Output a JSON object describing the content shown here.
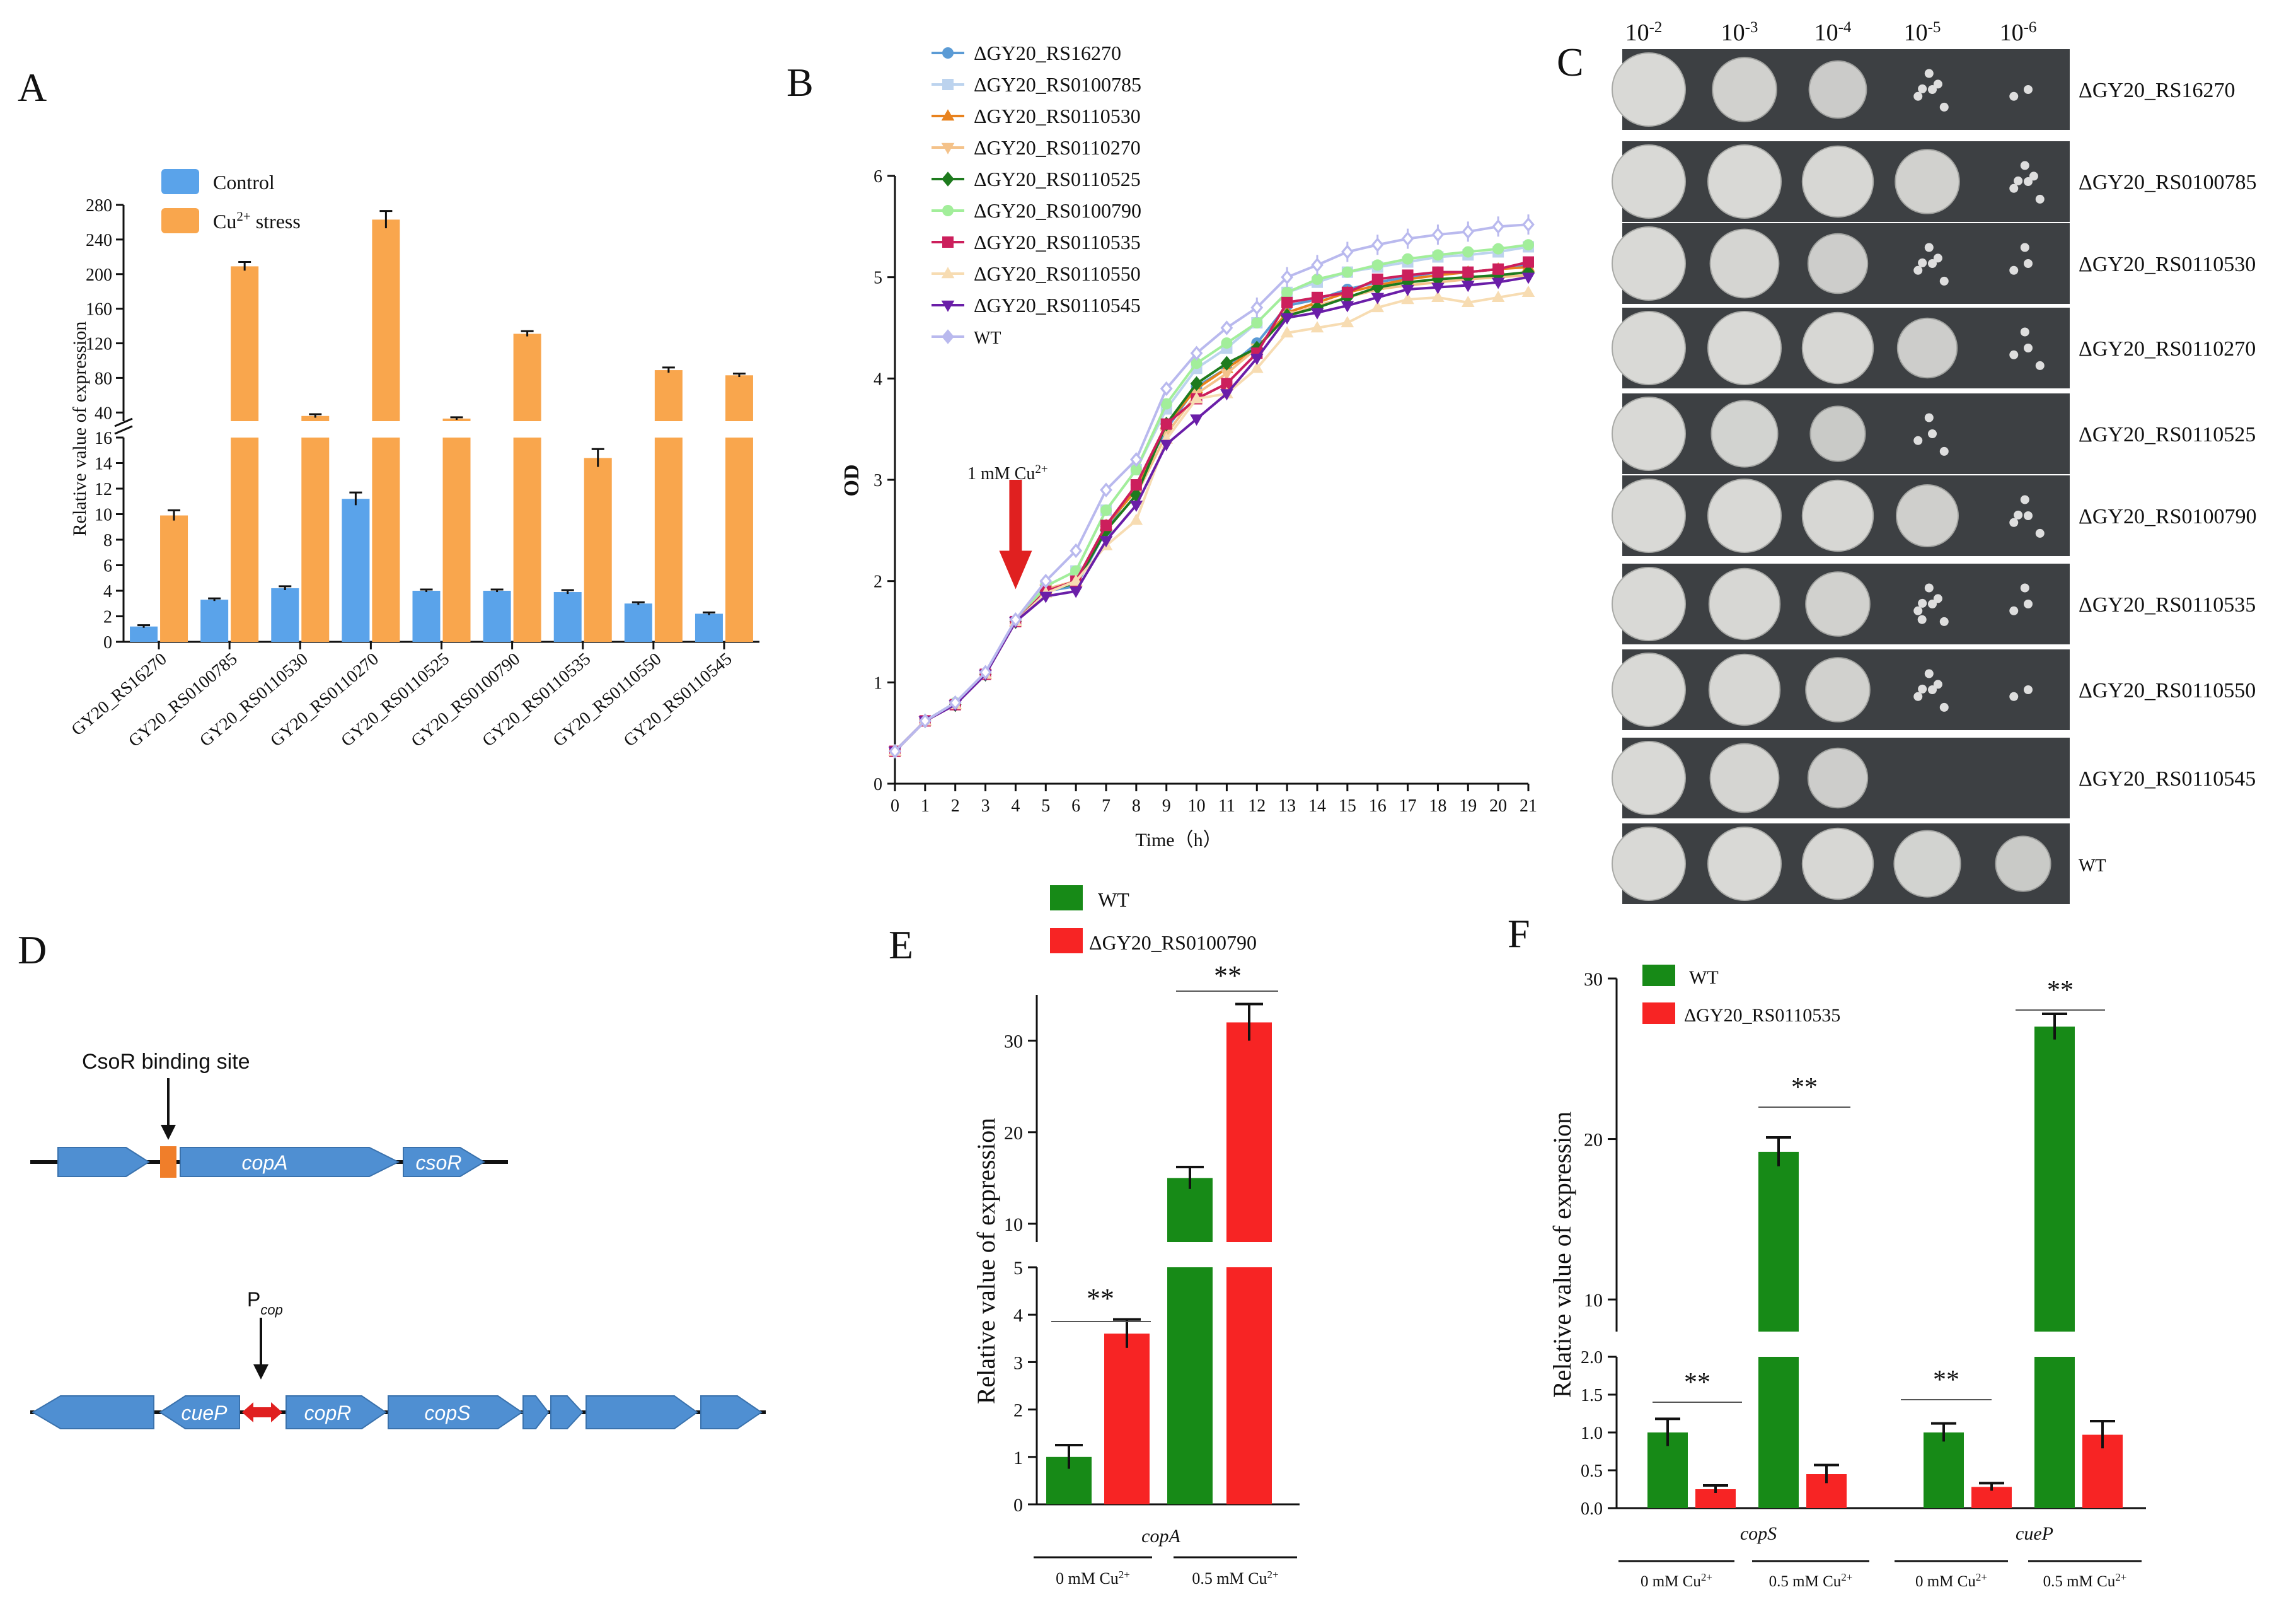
{
  "figure": {
    "panel_letters": [
      "A",
      "B",
      "C",
      "D",
      "E",
      "F"
    ]
  },
  "colors": {
    "control": "#5aa3ea",
    "cu_stress": "#f9a64d",
    "wt_green": "#178a17",
    "mutant_red": "#f72424",
    "gene_blue": "#4f8fd2",
    "csor_orange": "#f07e2a",
    "arrow_red": "#e02020"
  },
  "chart_data": [
    {
      "panel": "A",
      "type": "bar",
      "ylabel": "Relative value of expression",
      "ylim_lower": [
        0,
        16
      ],
      "ylim_upper": [
        30,
        280
      ],
      "yticks_lower": [
        "0",
        "2",
        "4",
        "6",
        "8",
        "10",
        "12",
        "14",
        "16"
      ],
      "yticks_upper": [
        "40",
        "80",
        "120",
        "160",
        "200",
        "240",
        "280"
      ],
      "categories": [
        "GY20_RS16270",
        "GY20_RS0100785",
        "GY20_RS0110530",
        "GY20_RS0110270",
        "GY20_RS0110525",
        "GY20_RS0100790",
        "GY20_RS0110535",
        "GY20_RS0110550",
        "GY20_RS0110545"
      ],
      "series": [
        {
          "name": "Control",
          "values": [
            1.2,
            3.3,
            4.2,
            11.2,
            4.0,
            4.0,
            3.9,
            3.0,
            2.2
          ],
          "errors": [
            0.1,
            0.1,
            0.15,
            0.5,
            0.1,
            0.1,
            0.15,
            0.1,
            0.1
          ]
        },
        {
          "name": "Cu2+ stress",
          "values": [
            9.9,
            209,
            36,
            263,
            33,
            131,
            14.4,
            89,
            83
          ],
          "errors": [
            0.4,
            5,
            2,
            10,
            1.5,
            3,
            0.7,
            3,
            2
          ]
        }
      ],
      "legend": [
        {
          "label": "Control"
        },
        {
          "label": "Cu",
          "sup": "2+",
          "rest": " stress"
        }
      ]
    },
    {
      "panel": "B",
      "type": "line",
      "ylabel": "OD",
      "xlabel": "Time（h）",
      "xlim": [
        0,
        21
      ],
      "ylim": [
        0,
        6
      ],
      "x": [
        0,
        1,
        2,
        3,
        4,
        5,
        6,
        7,
        8,
        9,
        10,
        11,
        12,
        13,
        14,
        15,
        16,
        17,
        18,
        19,
        20,
        21
      ],
      "xticks": [
        "0",
        "1",
        "2",
        "3",
        "4",
        "5",
        "6",
        "7",
        "8",
        "9",
        "10",
        "11",
        "12",
        "13",
        "14",
        "15",
        "16",
        "17",
        "18",
        "19",
        "20",
        "21"
      ],
      "yticks": [
        "0",
        "1",
        "2",
        "3",
        "4",
        "5",
        "6"
      ],
      "annotation": {
        "text": "1 mM Cu",
        "sup": "2+",
        "x": 4
      },
      "series": [
        {
          "name": "ΔGY20_RS16270",
          "marker": "circle",
          "color": "#5b9bd5",
          "values": [
            0.32,
            0.62,
            0.78,
            1.08,
            1.6,
            1.9,
            1.95,
            2.5,
            2.95,
            3.5,
            3.92,
            4.1,
            4.35,
            4.72,
            4.78,
            4.88,
            4.95,
            5.0,
            5.05,
            5.05,
            5.08,
            5.12
          ]
        },
        {
          "name": "ΔGY20_RS0100785",
          "marker": "square",
          "color": "#bcd3ee",
          "values": [
            0.32,
            0.62,
            0.78,
            1.08,
            1.6,
            1.95,
            2.1,
            2.7,
            3.1,
            3.7,
            4.1,
            4.3,
            4.55,
            4.85,
            4.95,
            5.05,
            5.1,
            5.15,
            5.2,
            5.22,
            5.25,
            5.3
          ]
        },
        {
          "name": "ΔGY20_RS0110530",
          "marker": "triangle",
          "color": "#e8821e",
          "values": [
            0.32,
            0.62,
            0.78,
            1.08,
            1.6,
            1.92,
            2.0,
            2.55,
            2.9,
            3.55,
            3.9,
            4.1,
            4.3,
            4.65,
            4.75,
            4.85,
            4.92,
            4.98,
            5.02,
            5.05,
            5.08,
            5.1
          ]
        },
        {
          "name": "ΔGY20_RS0110270",
          "marker": "triangle-down",
          "color": "#f4c28a",
          "values": [
            0.32,
            0.62,
            0.78,
            1.08,
            1.6,
            1.92,
            2.0,
            2.5,
            2.85,
            3.45,
            3.85,
            4.05,
            4.3,
            4.62,
            4.72,
            4.8,
            4.88,
            4.92,
            4.95,
            4.98,
            5.0,
            5.02
          ]
        },
        {
          "name": "ΔGY20_RS0110525",
          "marker": "diamond",
          "color": "#1e7b1e",
          "values": [
            0.32,
            0.62,
            0.78,
            1.08,
            1.6,
            1.9,
            1.98,
            2.5,
            2.85,
            3.55,
            3.95,
            4.15,
            4.3,
            4.62,
            4.7,
            4.8,
            4.9,
            4.95,
            4.98,
            5.0,
            5.02,
            5.05
          ]
        },
        {
          "name": "ΔGY20_RS0100790",
          "marker": "circle",
          "color": "#a2ee9a",
          "values": [
            0.32,
            0.62,
            0.8,
            1.08,
            1.6,
            1.95,
            2.1,
            2.7,
            3.1,
            3.75,
            4.15,
            4.35,
            4.55,
            4.85,
            4.98,
            5.05,
            5.12,
            5.18,
            5.22,
            5.25,
            5.28,
            5.32
          ]
        },
        {
          "name": "ΔGY20_RS0110535",
          "marker": "square",
          "color": "#cc1f5c",
          "values": [
            0.32,
            0.62,
            0.78,
            1.08,
            1.6,
            1.9,
            2.0,
            2.55,
            2.95,
            3.55,
            3.8,
            3.95,
            4.25,
            4.75,
            4.8,
            4.85,
            4.98,
            5.02,
            5.05,
            5.05,
            5.08,
            5.15
          ]
        },
        {
          "name": "ΔGY20_RS0110550",
          "marker": "triangle",
          "color": "#f7dcb2",
          "values": [
            0.32,
            0.62,
            0.78,
            1.08,
            1.6,
            1.88,
            2.0,
            2.35,
            2.6,
            3.4,
            3.8,
            3.85,
            4.1,
            4.45,
            4.5,
            4.55,
            4.7,
            4.78,
            4.8,
            4.75,
            4.8,
            4.85
          ]
        },
        {
          "name": "ΔGY20_RS0110545",
          "marker": "triangle-down",
          "color": "#6a1ea8",
          "values": [
            0.32,
            0.62,
            0.78,
            1.08,
            1.6,
            1.85,
            1.9,
            2.4,
            2.75,
            3.35,
            3.6,
            3.85,
            4.2,
            4.6,
            4.65,
            4.72,
            4.8,
            4.88,
            4.9,
            4.92,
            4.95,
            5.0
          ]
        },
        {
          "name": "WT",
          "marker": "diamond",
          "color": "#b9b9ee",
          "values": [
            0.32,
            0.62,
            0.8,
            1.1,
            1.62,
            2.0,
            2.3,
            2.9,
            3.2,
            3.9,
            4.25,
            4.5,
            4.7,
            5.0,
            5.12,
            5.25,
            5.32,
            5.38,
            5.42,
            5.45,
            5.5,
            5.52
          ]
        }
      ]
    },
    {
      "panel": "E",
      "type": "bar",
      "ylabel": "Relative value of expression",
      "ylim_lower": [
        0,
        5
      ],
      "ylim_upper": [
        8,
        35
      ],
      "yticks_lower": [
        "0",
        "1",
        "2",
        "3",
        "4",
        "5"
      ],
      "yticks_upper": [
        "10",
        "20",
        "30"
      ],
      "gene": "copA",
      "groups": [
        {
          "label": "0 mM Cu",
          "sup": "2+"
        },
        {
          "label": "0.5 mM Cu",
          "sup": "2+"
        }
      ],
      "series": [
        {
          "name": "WT",
          "values": [
            1.0,
            15.0
          ],
          "errors": [
            0.25,
            1.2
          ]
        },
        {
          "name": "ΔGY20_RS0100790",
          "values": [
            3.6,
            32.0
          ],
          "errors": [
            0.3,
            2.0
          ]
        }
      ],
      "significance": [
        "**",
        "**"
      ]
    },
    {
      "panel": "F",
      "type": "bar",
      "ylabel": "Relative value of expression",
      "ylim_lower": [
        0,
        2.0
      ],
      "ylim_upper": [
        8,
        30
      ],
      "yticks_lower": [
        "0.0",
        "0.5",
        "1.0",
        "1.5",
        "2.0"
      ],
      "yticks_upper": [
        "10",
        "20",
        "30"
      ],
      "genes": [
        "copS",
        "cueP"
      ],
      "groups": [
        {
          "label": "0 mM Cu",
          "sup": "2+"
        },
        {
          "label": "0.5 mM Cu",
          "sup": "2+"
        },
        {
          "label": "0 mM Cu",
          "sup": "2+"
        },
        {
          "label": "0.5 mM Cu",
          "sup": "2+"
        }
      ],
      "series": [
        {
          "name": "WT",
          "values": [
            1.0,
            19.2,
            1.0,
            27.0
          ],
          "errors": [
            0.18,
            0.9,
            0.12,
            0.8
          ]
        },
        {
          "name": "ΔGY20_RS0110535",
          "values": [
            0.25,
            0.45,
            0.28,
            0.97
          ],
          "errors": [
            0.05,
            0.12,
            0.05,
            0.18
          ]
        }
      ],
      "significance": [
        "**",
        "**",
        "**",
        "**"
      ]
    }
  ],
  "panel_c": {
    "dilutions": [
      {
        "base": "10",
        "exp": "-2"
      },
      {
        "base": "10",
        "exp": "-3"
      },
      {
        "base": "10",
        "exp": "-4"
      },
      {
        "base": "10",
        "exp": "-5"
      },
      {
        "base": "10",
        "exp": "-6"
      }
    ],
    "strains": [
      "ΔGY20_RS16270",
      "ΔGY20_RS0100785",
      "ΔGY20_RS0110530",
      "ΔGY20_RS0110270",
      "ΔGY20_RS0110525",
      "ΔGY20_RS0100790",
      "ΔGY20_RS0110535",
      "ΔGY20_RS0110550",
      "ΔGY20_RS0110545",
      "WT"
    ],
    "growth_levels": [
      [
        1.0,
        0.8,
        0.65,
        0.4,
        0.15
      ],
      [
        1.0,
        1.0,
        0.95,
        0.8,
        0.45
      ],
      [
        1.0,
        0.9,
        0.7,
        0.4,
        0.2
      ],
      [
        1.0,
        1.0,
        0.95,
        0.7,
        0.3
      ],
      [
        1.0,
        0.85,
        0.6,
        0.3,
        0.0
      ],
      [
        1.0,
        1.0,
        0.95,
        0.75,
        0.35
      ],
      [
        1.0,
        0.95,
        0.8,
        0.5,
        0.2
      ],
      [
        1.0,
        0.95,
        0.8,
        0.4,
        0.1
      ],
      [
        1.0,
        0.9,
        0.7,
        0.0,
        0.0
      ],
      [
        1.0,
        1.0,
        0.95,
        0.85,
        0.6
      ]
    ]
  },
  "panel_d": {
    "csor_site_label": "CsoR binding site",
    "operon1_genes": [
      "copA",
      "csoR"
    ],
    "promoter_label": {
      "main": "P",
      "sub": "cop"
    },
    "operon2_genes": [
      "cueP",
      "copR",
      "copS"
    ]
  }
}
